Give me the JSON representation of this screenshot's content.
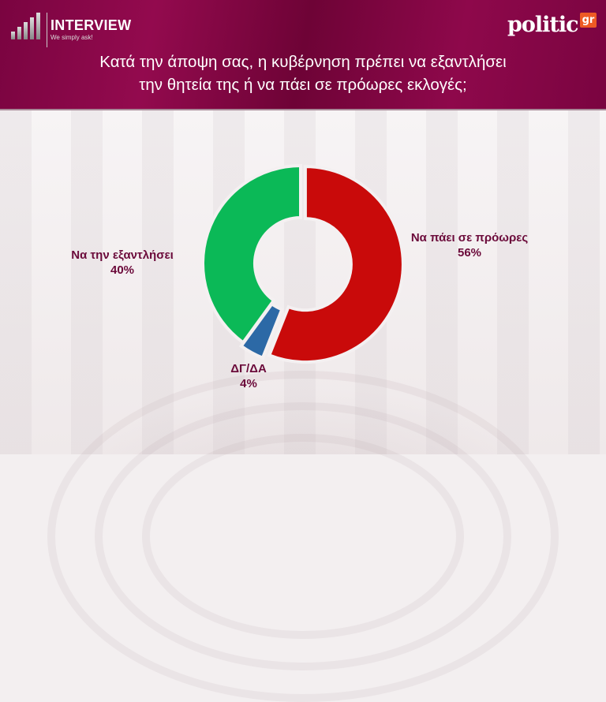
{
  "header": {
    "brand": "INTERVIEW",
    "tagline": "We simply ask!",
    "partner_logo": "politic",
    "partner_logo_suffix": "gr",
    "title_line1": "Κατά την άποψη σας, η κυβέρνηση πρέπει να εξαντλήσει",
    "title_line2": "την θητεία της ή να πάει σε πρόωρες εκλογές;"
  },
  "chart_data": {
    "type": "pie",
    "variant": "donut",
    "title": "Κατά την άποψη σας, η κυβέρνηση πρέπει να εξαντλήσει την θητεία της ή να πάει σε πρόωρες εκλογές;",
    "slices": [
      {
        "label": "Να πάει σε  πρόωρες",
        "value": 56,
        "display": "56%",
        "color": "#c90a0a"
      },
      {
        "label": "ΔΓ/ΔΑ",
        "value": 4,
        "display": "4%",
        "color": "#2c69a6"
      },
      {
        "label": "Να την εξαντλήσει",
        "value": 40,
        "display": "40%",
        "color": "#0bb957"
      }
    ],
    "start": "top",
    "direction": "clockwise",
    "legend": "none"
  }
}
